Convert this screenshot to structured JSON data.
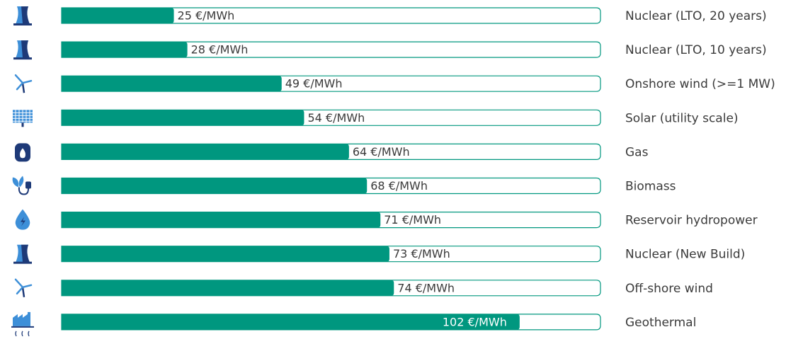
{
  "chart_data": {
    "type": "bar",
    "categories": [
      "Nuclear (LTO, 20 years)",
      "Nuclear (LTO, 10 years)",
      "Onshore wind (>=1 MW)",
      "Solar (utility scale)",
      "Gas",
      "Biomass",
      "Reservoir hydropower",
      "Nuclear (New Build)",
      "Off-shore wind",
      "Geothermal"
    ],
    "values": [
      25,
      28,
      49,
      54,
      64,
      68,
      71,
      73,
      74,
      102
    ],
    "value_labels": [
      "25 €/MWh",
      "28 €/MWh",
      "49 €/MWh",
      "54 €/MWh",
      "64 €/MWh",
      "68 €/MWh",
      "71 €/MWh",
      "73 €/MWh",
      "74 €/MWh",
      "102 €/MWh"
    ],
    "color": "#00977f",
    "xlim": [
      0,
      120
    ]
  }
}
